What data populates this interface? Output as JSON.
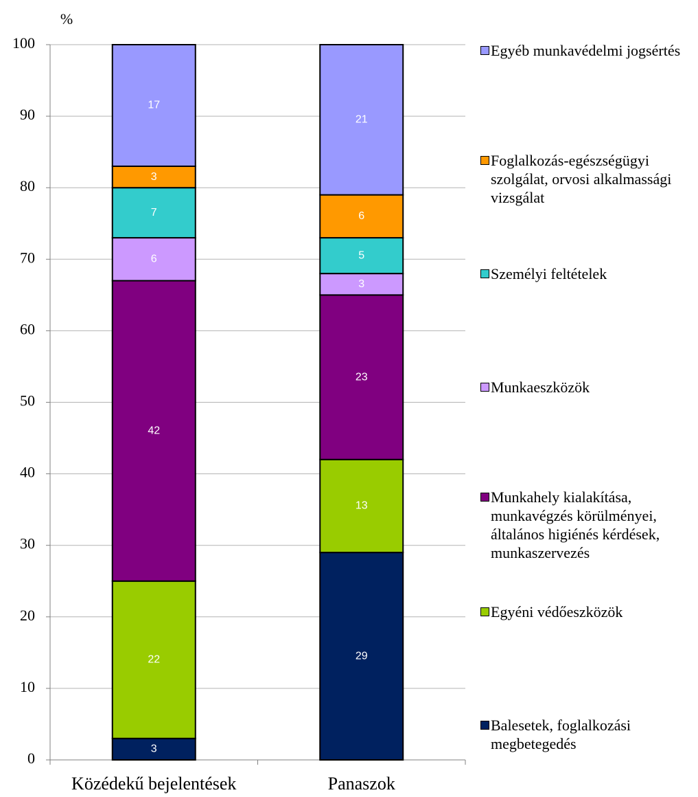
{
  "chart_data": {
    "type": "stacked_bar",
    "ylabel": "%",
    "categories": [
      "Közédekű bejelentések",
      "Panaszok"
    ],
    "series": [
      {
        "name": "Balesetek, foglalkozási megbetegedés",
        "color": "#00215f",
        "values": [
          3,
          29
        ]
      },
      {
        "name": "Egyéni védőeszközök",
        "color": "#99cc00",
        "values": [
          22,
          13
        ]
      },
      {
        "name": "Munkahely kialakítása, munkavégzés körülményei, általános higiénés kérdések, munkaszervezés",
        "color": "#800080",
        "values": [
          42,
          23
        ]
      },
      {
        "name": "Munkaeszközök",
        "color": "#cc99ff",
        "values": [
          6,
          3
        ]
      },
      {
        "name": "Személyi feltételek",
        "color": "#33cccc",
        "values": [
          7,
          5
        ]
      },
      {
        "name": "Foglalkozás-egészségügyi szolgálat, orvosi alkalmassági vizsgálat",
        "color": "#ff9900",
        "values": [
          3,
          6
        ]
      },
      {
        "name": "Egyéb munkavédelmi jogsértés",
        "color": "#9999ff",
        "values": [
          17,
          21
        ]
      }
    ],
    "ylim": [
      0,
      100
    ],
    "yticks": [
      0,
      10,
      20,
      30,
      40,
      50,
      60,
      70,
      80,
      90,
      100
    ],
    "grid": true,
    "legend": "right"
  }
}
